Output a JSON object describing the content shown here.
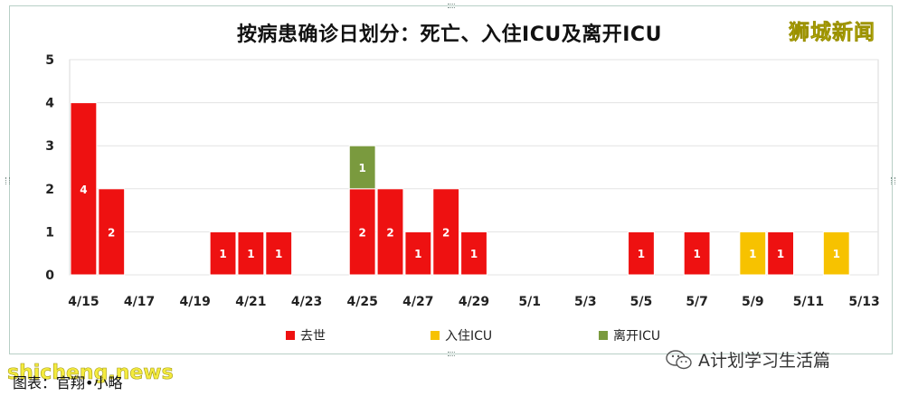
{
  "watermark_top": "狮城新闻",
  "source_text": "图表：官翔•小略",
  "site_watermark": "shicheng.news",
  "wechat_account": "A计划学习生活篇",
  "chart_data": {
    "type": "bar",
    "stacked": true,
    "title": "按病患确诊日划分：死亡、入住ICU及离开ICU",
    "x": [
      "4/15",
      "4/16",
      "4/17",
      "4/18",
      "4/19",
      "4/20",
      "4/21",
      "4/22",
      "4/23",
      "4/24",
      "4/25",
      "4/26",
      "4/27",
      "4/28",
      "4/29",
      "4/30",
      "5/1",
      "5/2",
      "5/3",
      "5/4",
      "5/5",
      "5/6",
      "5/7",
      "5/8",
      "5/9",
      "5/10",
      "5/11",
      "5/12",
      "5/13"
    ],
    "x_tick_labels": [
      "4/15",
      "4/17",
      "4/19",
      "4/21",
      "4/23",
      "4/25",
      "4/27",
      "4/29",
      "5/1",
      "5/3",
      "5/5",
      "5/7",
      "5/9",
      "5/11",
      "5/13"
    ],
    "series": [
      {
        "name": "去世",
        "color": "#ee1111",
        "values": [
          4,
          2,
          0,
          0,
          0,
          1,
          1,
          1,
          0,
          0,
          2,
          2,
          1,
          2,
          1,
          0,
          0,
          0,
          0,
          0,
          1,
          0,
          1,
          0,
          0,
          1,
          0,
          0,
          0
        ]
      },
      {
        "name": "入住ICU",
        "color": "#f7c200",
        "values": [
          0,
          0,
          0,
          0,
          0,
          0,
          0,
          0,
          0,
          0,
          0,
          0,
          0,
          0,
          0,
          0,
          0,
          0,
          0,
          0,
          0,
          0,
          0,
          0,
          1,
          0,
          0,
          1,
          0
        ]
      },
      {
        "name": "离开ICU",
        "color": "#7a9a3e",
        "values": [
          0,
          0,
          0,
          0,
          0,
          0,
          0,
          0,
          0,
          0,
          1,
          0,
          0,
          0,
          0,
          0,
          0,
          0,
          0,
          0,
          0,
          0,
          0,
          0,
          0,
          0,
          0,
          0,
          0
        ]
      }
    ],
    "ylim": [
      0,
      5
    ],
    "y_ticks": [
      0,
      1,
      2,
      3,
      4,
      5
    ],
    "grid": true,
    "legend_position": "bottom"
  }
}
